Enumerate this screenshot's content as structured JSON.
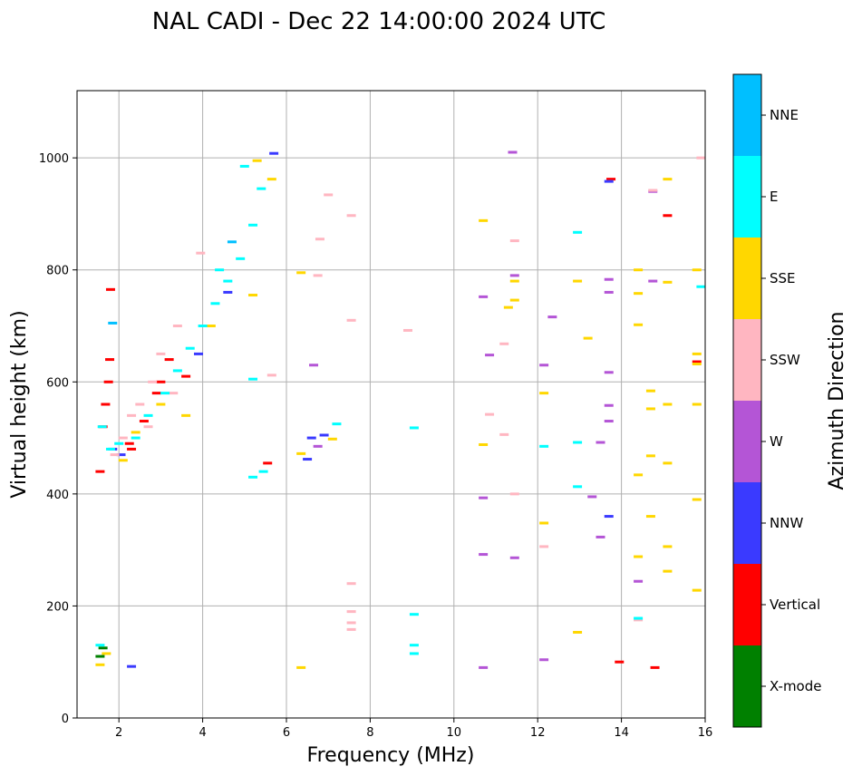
{
  "chart_data": {
    "type": "scatter",
    "title": "NAL CADI - Dec 22 14:00:00 2024 UTC",
    "xlabel": "Frequency (MHz)",
    "ylabel": "Virtual height (km)",
    "xlim": [
      1.0,
      16.0
    ],
    "ylim": [
      0,
      1120
    ],
    "xticks": [
      2,
      4,
      6,
      8,
      10,
      12,
      14,
      16
    ],
    "yticks": [
      0,
      200,
      400,
      600,
      800,
      1000
    ],
    "grid": true,
    "colorbar": {
      "label": "Azimuth Direction",
      "categories": [
        {
          "name": "X-mode",
          "color": "#008000"
        },
        {
          "name": "Vertical",
          "color": "#ff0000"
        },
        {
          "name": "NNW",
          "color": "#3a3aff"
        },
        {
          "name": "W",
          "color": "#b455d6"
        },
        {
          "name": "SSW",
          "color": "#ffb6c1"
        },
        {
          "name": "SSE",
          "color": "#ffd700"
        },
        {
          "name": "E",
          "color": "#00ffff"
        },
        {
          "name": "NNE",
          "color": "#00bfff"
        }
      ]
    },
    "series": [
      {
        "name": "X-mode",
        "points": [
          [
            1.55,
            110
          ],
          [
            1.62,
            125
          ]
        ]
      },
      {
        "name": "Vertical",
        "points": [
          [
            1.55,
            440
          ],
          [
            1.62,
            520
          ],
          [
            1.68,
            560
          ],
          [
            1.75,
            600
          ],
          [
            1.78,
            640
          ],
          [
            1.8,
            765
          ],
          [
            2.25,
            490
          ],
          [
            2.3,
            480
          ],
          [
            2.6,
            530
          ],
          [
            2.9,
            580
          ],
          [
            3.0,
            600
          ],
          [
            3.2,
            640
          ],
          [
            3.6,
            610
          ],
          [
            5.55,
            455
          ],
          [
            13.75,
            962
          ],
          [
            13.95,
            100
          ],
          [
            14.8,
            90
          ],
          [
            15.1,
            897
          ],
          [
            15.8,
            636
          ]
        ]
      },
      {
        "name": "NNW",
        "points": [
          [
            1.85,
            480
          ],
          [
            2.05,
            470
          ],
          [
            2.3,
            92
          ],
          [
            3.9,
            650
          ],
          [
            4.6,
            760
          ],
          [
            5.7,
            1008
          ],
          [
            6.5,
            462
          ],
          [
            6.6,
            500
          ],
          [
            6.9,
            505
          ],
          [
            13.7,
            958
          ],
          [
            13.7,
            360
          ]
        ]
      },
      {
        "name": "W",
        "points": [
          [
            6.65,
            630
          ],
          [
            6.75,
            485
          ],
          [
            10.7,
            752
          ],
          [
            10.7,
            393
          ],
          [
            10.7,
            292
          ],
          [
            10.7,
            90
          ],
          [
            10.85,
            648
          ],
          [
            11.4,
            1010
          ],
          [
            11.45,
            790
          ],
          [
            11.45,
            286
          ],
          [
            12.15,
            630
          ],
          [
            12.15,
            104
          ],
          [
            12.35,
            716
          ],
          [
            13.3,
            395
          ],
          [
            13.5,
            492
          ],
          [
            13.5,
            323
          ],
          [
            13.7,
            783
          ],
          [
            13.7,
            617
          ],
          [
            13.7,
            530
          ],
          [
            13.7,
            558
          ],
          [
            13.7,
            760
          ],
          [
            14.4,
            244
          ],
          [
            14.75,
            780
          ],
          [
            14.75,
            940
          ]
        ]
      },
      {
        "name": "SSW",
        "points": [
          [
            1.9,
            470
          ],
          [
            2.1,
            500
          ],
          [
            2.3,
            540
          ],
          [
            2.5,
            560
          ],
          [
            2.7,
            520
          ],
          [
            2.8,
            600
          ],
          [
            3.0,
            650
          ],
          [
            3.4,
            700
          ],
          [
            3.3,
            580
          ],
          [
            3.95,
            830
          ],
          [
            5.65,
            612
          ],
          [
            6.75,
            790
          ],
          [
            6.8,
            855
          ],
          [
            7.0,
            934
          ],
          [
            7.55,
            897
          ],
          [
            7.55,
            710
          ],
          [
            7.55,
            240
          ],
          [
            7.55,
            190
          ],
          [
            7.55,
            170
          ],
          [
            7.55,
            158
          ],
          [
            8.9,
            692
          ],
          [
            10.85,
            542
          ],
          [
            11.2,
            668
          ],
          [
            11.2,
            506
          ],
          [
            11.45,
            400
          ],
          [
            11.45,
            852
          ],
          [
            12.15,
            306
          ],
          [
            14.4,
            175
          ],
          [
            14.75,
            942
          ],
          [
            15.9,
            1000
          ]
        ]
      },
      {
        "name": "SSE",
        "points": [
          [
            1.55,
            95
          ],
          [
            1.7,
            115
          ],
          [
            2.1,
            460
          ],
          [
            2.4,
            510
          ],
          [
            3.0,
            560
          ],
          [
            3.6,
            540
          ],
          [
            4.2,
            700
          ],
          [
            5.2,
            755
          ],
          [
            5.3,
            995
          ],
          [
            5.65,
            962
          ],
          [
            6.35,
            795
          ],
          [
            6.35,
            472
          ],
          [
            6.35,
            90
          ],
          [
            7.1,
            498
          ],
          [
            10.7,
            888
          ],
          [
            10.7,
            488
          ],
          [
            11.3,
            733
          ],
          [
            11.45,
            780
          ],
          [
            11.45,
            746
          ],
          [
            12.15,
            580
          ],
          [
            12.15,
            348
          ],
          [
            12.95,
            780
          ],
          [
            12.95,
            153
          ],
          [
            13.2,
            678
          ],
          [
            14.4,
            800
          ],
          [
            14.4,
            758
          ],
          [
            14.4,
            702
          ],
          [
            14.4,
            434
          ],
          [
            14.4,
            288
          ],
          [
            14.7,
            584
          ],
          [
            14.7,
            552
          ],
          [
            14.7,
            468
          ],
          [
            14.7,
            360
          ],
          [
            15.1,
            962
          ],
          [
            15.1,
            778
          ],
          [
            15.1,
            560
          ],
          [
            15.1,
            455
          ],
          [
            15.1,
            306
          ],
          [
            15.1,
            262
          ],
          [
            15.8,
            800
          ],
          [
            15.8,
            650
          ],
          [
            15.8,
            560
          ],
          [
            15.8,
            390
          ],
          [
            15.8,
            228
          ],
          [
            15.8,
            632
          ]
        ]
      },
      {
        "name": "E",
        "points": [
          [
            1.55,
            130
          ],
          [
            1.6,
            520
          ],
          [
            1.8,
            480
          ],
          [
            2.0,
            490
          ],
          [
            2.4,
            500
          ],
          [
            2.7,
            540
          ],
          [
            3.1,
            580
          ],
          [
            3.4,
            620
          ],
          [
            3.7,
            660
          ],
          [
            4.0,
            700
          ],
          [
            4.3,
            740
          ],
          [
            4.6,
            780
          ],
          [
            4.9,
            820
          ],
          [
            5.2,
            880
          ],
          [
            5.0,
            985
          ],
          [
            5.4,
            945
          ],
          [
            4.4,
            800
          ],
          [
            5.2,
            605
          ],
          [
            5.2,
            430
          ],
          [
            5.45,
            440
          ],
          [
            7.2,
            525
          ],
          [
            9.05,
            518
          ],
          [
            9.05,
            185
          ],
          [
            9.05,
            130
          ],
          [
            9.05,
            115
          ],
          [
            12.15,
            485
          ],
          [
            12.95,
            867
          ],
          [
            12.95,
            492
          ],
          [
            12.95,
            413
          ],
          [
            14.4,
            178
          ],
          [
            15.9,
            770
          ]
        ]
      },
      {
        "name": "NNE",
        "points": [
          [
            1.85,
            705
          ],
          [
            4.7,
            850
          ]
        ]
      }
    ]
  }
}
